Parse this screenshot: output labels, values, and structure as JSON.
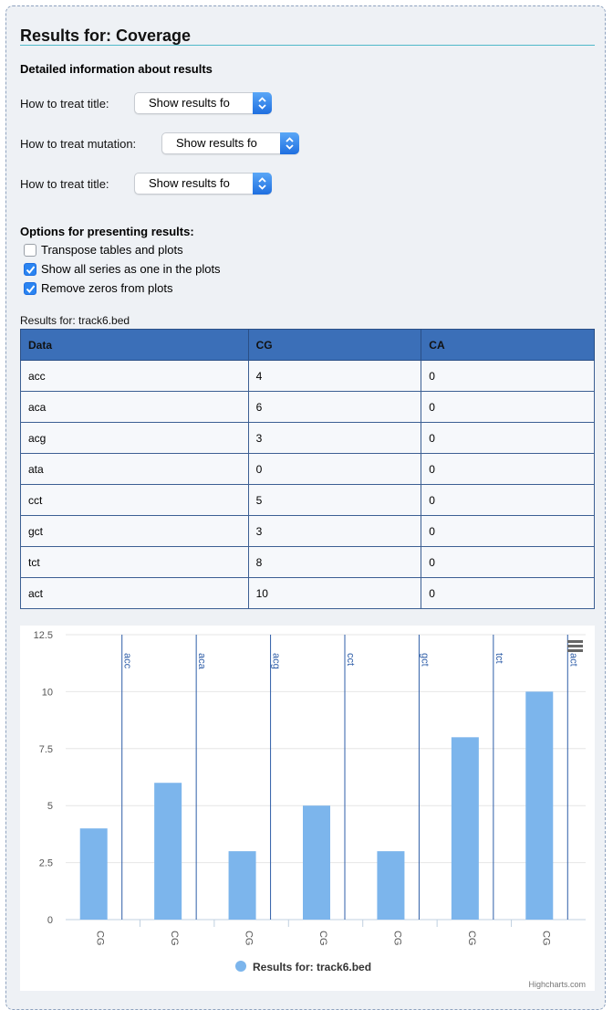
{
  "page": {
    "title": "Results for: Coverage",
    "subheading": "Detailed information about results"
  },
  "settings": [
    {
      "label": "How to treat title:",
      "value": "Show results fo"
    },
    {
      "label": "How to treat mutation:",
      "value": "Show results fo"
    },
    {
      "label": "How to treat title:",
      "value": "Show results fo"
    }
  ],
  "options": {
    "heading": "Options for presenting results:",
    "items": [
      {
        "label": "Transpose tables and plots",
        "checked": false
      },
      {
        "label": "Show all series as one in the plots",
        "checked": true
      },
      {
        "label": "Remove zeros from plots",
        "checked": true
      }
    ]
  },
  "table": {
    "caption": "Results for: track6.bed",
    "headers": [
      "Data",
      "CG",
      "CA"
    ],
    "rows": [
      [
        "acc",
        "4",
        "0"
      ],
      [
        "aca",
        "6",
        "0"
      ],
      [
        "acg",
        "3",
        "0"
      ],
      [
        "ata",
        "0",
        "0"
      ],
      [
        "cct",
        "5",
        "0"
      ],
      [
        "gct",
        "3",
        "0"
      ],
      [
        "tct",
        "8",
        "0"
      ],
      [
        "act",
        "10",
        "0"
      ]
    ]
  },
  "chart_data": {
    "type": "bar",
    "categories": [
      "CG",
      "CG",
      "CG",
      "CG",
      "CG",
      "CG",
      "CG"
    ],
    "group_labels": [
      "acc",
      "aca",
      "acg",
      "cct",
      "gct",
      "tct",
      "act"
    ],
    "values": [
      4,
      6,
      3,
      5,
      3,
      8,
      10
    ],
    "series": [
      {
        "name": "Results for: track6.bed",
        "values": [
          4,
          6,
          3,
          5,
          3,
          8,
          10
        ]
      }
    ],
    "y_ticks": [
      "0",
      "2.5",
      "5",
      "7.5",
      "10",
      "12.5"
    ],
    "ylim": [
      0,
      12.5
    ],
    "grid": true,
    "legend_position": "bottom-center",
    "credits": "Highcharts.com",
    "bar_color": "#7cb5ec",
    "band_line_color": "#2f5ea8"
  }
}
